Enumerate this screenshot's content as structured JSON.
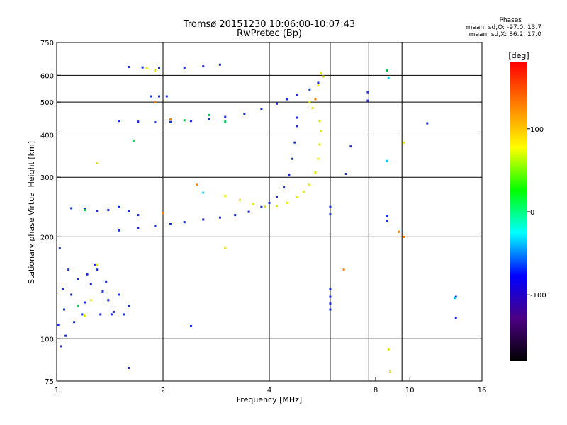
{
  "title_line1": "Tromsø 20151230 10:06:00-10:07:43",
  "title_line2": "RwPretec (Bp)",
  "stats": {
    "header": "Phases",
    "o_line": "mean, sd,O: -97.0, 13.7",
    "x_line": "mean, sd,X:  86.2, 17.0"
  },
  "chart_data": {
    "type": "scatter",
    "xlabel": "Frequency [MHz]",
    "ylabel": "Stationary phase Virtual Height [km]",
    "x_scale": "log",
    "y_scale": "log",
    "xlim": [
      1,
      16
    ],
    "ylim": [
      75,
      750
    ],
    "x_ticks": [
      1,
      2,
      4,
      8,
      16
    ],
    "x_tick_labels": [
      "1",
      "2",
      "4",
      "8",
      "16"
    ],
    "x_extra_ticks": [
      10
    ],
    "x_extra_tick_labels": [
      "10"
    ],
    "x_gridlines": [
      2,
      4,
      5.95,
      7.65,
      9.5
    ],
    "y_ticks": [
      75,
      100,
      200,
      300,
      400,
      500,
      600,
      750
    ],
    "y_tick_labels": [
      "75",
      "100",
      "200",
      "300",
      "400",
      "500",
      "600",
      "750"
    ],
    "y_gridlines": [
      100,
      200,
      300,
      400,
      500,
      600
    ],
    "colorbar": {
      "label": "[deg]",
      "ticks": [
        100,
        0,
        -100
      ],
      "tick_labels": [
        "100",
        "0",
        "-100"
      ],
      "range": [
        -180,
        180
      ],
      "colors": [
        "#000000",
        "#4b0082",
        "#0000ff",
        "#00ffff",
        "#00ff00",
        "#ffff00",
        "#ff8000",
        "#ff0000"
      ]
    },
    "series": [
      {
        "color": "#1a2ee0",
        "points": [
          [
            1.5,
            209
          ],
          [
            1.7,
            212
          ],
          [
            1.9,
            215
          ],
          [
            2.1,
            218
          ],
          [
            2.3,
            221
          ],
          [
            2.6,
            225
          ],
          [
            2.9,
            228
          ],
          [
            3.2,
            232
          ],
          [
            3.5,
            237
          ],
          [
            3.8,
            245
          ],
          [
            4.0,
            252
          ],
          [
            4.2,
            262
          ],
          [
            4.4,
            280
          ],
          [
            4.55,
            305
          ],
          [
            4.65,
            340
          ],
          [
            4.72,
            380
          ],
          [
            4.78,
            425
          ],
          [
            4.8,
            450
          ],
          [
            1.5,
            440
          ],
          [
            1.7,
            438
          ],
          [
            1.9,
            436
          ],
          [
            2.1,
            437
          ],
          [
            2.4,
            440
          ],
          [
            2.7,
            445
          ],
          [
            3.0,
            452
          ],
          [
            3.4,
            462
          ],
          [
            3.8,
            478
          ],
          [
            4.2,
            495
          ],
          [
            4.5,
            510
          ],
          [
            4.8,
            525
          ],
          [
            5.2,
            545
          ],
          [
            5.5,
            570
          ],
          [
            1.85,
            520
          ],
          [
            1.95,
            520
          ],
          [
            2.05,
            520
          ],
          [
            1.6,
            635
          ],
          [
            1.75,
            633
          ],
          [
            1.95,
            630
          ],
          [
            2.3,
            632
          ],
          [
            2.6,
            638
          ],
          [
            2.9,
            645
          ],
          [
            1.1,
            243
          ],
          [
            1.2,
            242
          ],
          [
            1.3,
            238
          ],
          [
            1.4,
            240
          ],
          [
            1.5,
            245
          ],
          [
            1.6,
            238
          ],
          [
            1.7,
            232
          ],
          [
            1.05,
            122
          ],
          [
            1.1,
            135
          ],
          [
            1.15,
            150
          ],
          [
            1.2,
            128
          ],
          [
            1.25,
            145
          ],
          [
            1.3,
            160
          ],
          [
            1.35,
            138
          ],
          [
            1.4,
            130
          ],
          [
            1.45,
            120
          ],
          [
            1.5,
            135
          ],
          [
            1.55,
            118
          ],
          [
            1.6,
            125
          ],
          [
            1.08,
            160
          ],
          [
            1.12,
            112
          ],
          [
            1.18,
            118
          ],
          [
            1.22,
            155
          ],
          [
            1.28,
            165
          ],
          [
            1.33,
            118
          ],
          [
            1.38,
            147
          ],
          [
            1.43,
            118
          ],
          [
            1.02,
            185
          ],
          [
            1.04,
            140
          ],
          [
            1.01,
            110
          ],
          [
            1.06,
            102
          ],
          [
            5.95,
            245
          ],
          [
            5.95,
            233
          ],
          [
            5.95,
            140
          ],
          [
            5.95,
            133
          ],
          [
            5.95,
            127
          ],
          [
            5.95,
            122
          ],
          [
            6.6,
            307
          ],
          [
            6.8,
            370
          ],
          [
            7.6,
            535
          ],
          [
            7.6,
            505
          ],
          [
            8.6,
            230
          ],
          [
            8.6,
            223
          ],
          [
            13.5,
            133
          ],
          [
            13.5,
            115
          ],
          [
            11.2,
            433
          ],
          [
            2.4,
            109
          ],
          [
            1.6,
            82
          ],
          [
            1.03,
            95
          ]
        ]
      },
      {
        "color": "#e6e600",
        "points": [
          [
            3.0,
            264
          ],
          [
            3.3,
            257
          ],
          [
            3.6,
            250
          ],
          [
            3.9,
            246
          ],
          [
            4.2,
            247
          ],
          [
            4.5,
            252
          ],
          [
            4.8,
            262
          ],
          [
            5.0,
            272
          ],
          [
            5.2,
            285
          ],
          [
            5.4,
            310
          ],
          [
            5.5,
            340
          ],
          [
            5.55,
            375
          ],
          [
            5.6,
            410
          ],
          [
            5.55,
            440
          ],
          [
            5.3,
            480
          ],
          [
            5.2,
            500
          ],
          [
            5.5,
            560
          ],
          [
            5.6,
            610
          ],
          [
            5.7,
            595
          ],
          [
            1.2,
            117
          ],
          [
            1.25,
            130
          ],
          [
            1.3,
            165
          ],
          [
            1.2,
            240
          ],
          [
            1.3,
            330
          ],
          [
            8.7,
            93
          ],
          [
            8.8,
            80
          ],
          [
            9.6,
            380
          ],
          [
            3.0,
            185
          ],
          [
            1.8,
            630
          ],
          [
            1.9,
            620
          ]
        ]
      },
      {
        "color": "#00c850",
        "points": [
          [
            1.15,
            125
          ],
          [
            1.2,
            240
          ],
          [
            2.3,
            442
          ],
          [
            2.7,
            458
          ],
          [
            1.65,
            385
          ],
          [
            3.0,
            438
          ],
          [
            8.6,
            620
          ]
        ]
      },
      {
        "color": "#ff8000",
        "points": [
          [
            1.9,
            500
          ],
          [
            2.1,
            445
          ],
          [
            2.5,
            285
          ],
          [
            5.4,
            510
          ],
          [
            9.3,
            207
          ],
          [
            9.6,
            200
          ],
          [
            6.5,
            160
          ],
          [
            2.0,
            235
          ]
        ]
      },
      {
        "color": "#00c8ff",
        "points": [
          [
            8.7,
            590
          ],
          [
            8.6,
            335
          ],
          [
            13.4,
            132
          ],
          [
            2.6,
            270
          ]
        ]
      }
    ]
  }
}
